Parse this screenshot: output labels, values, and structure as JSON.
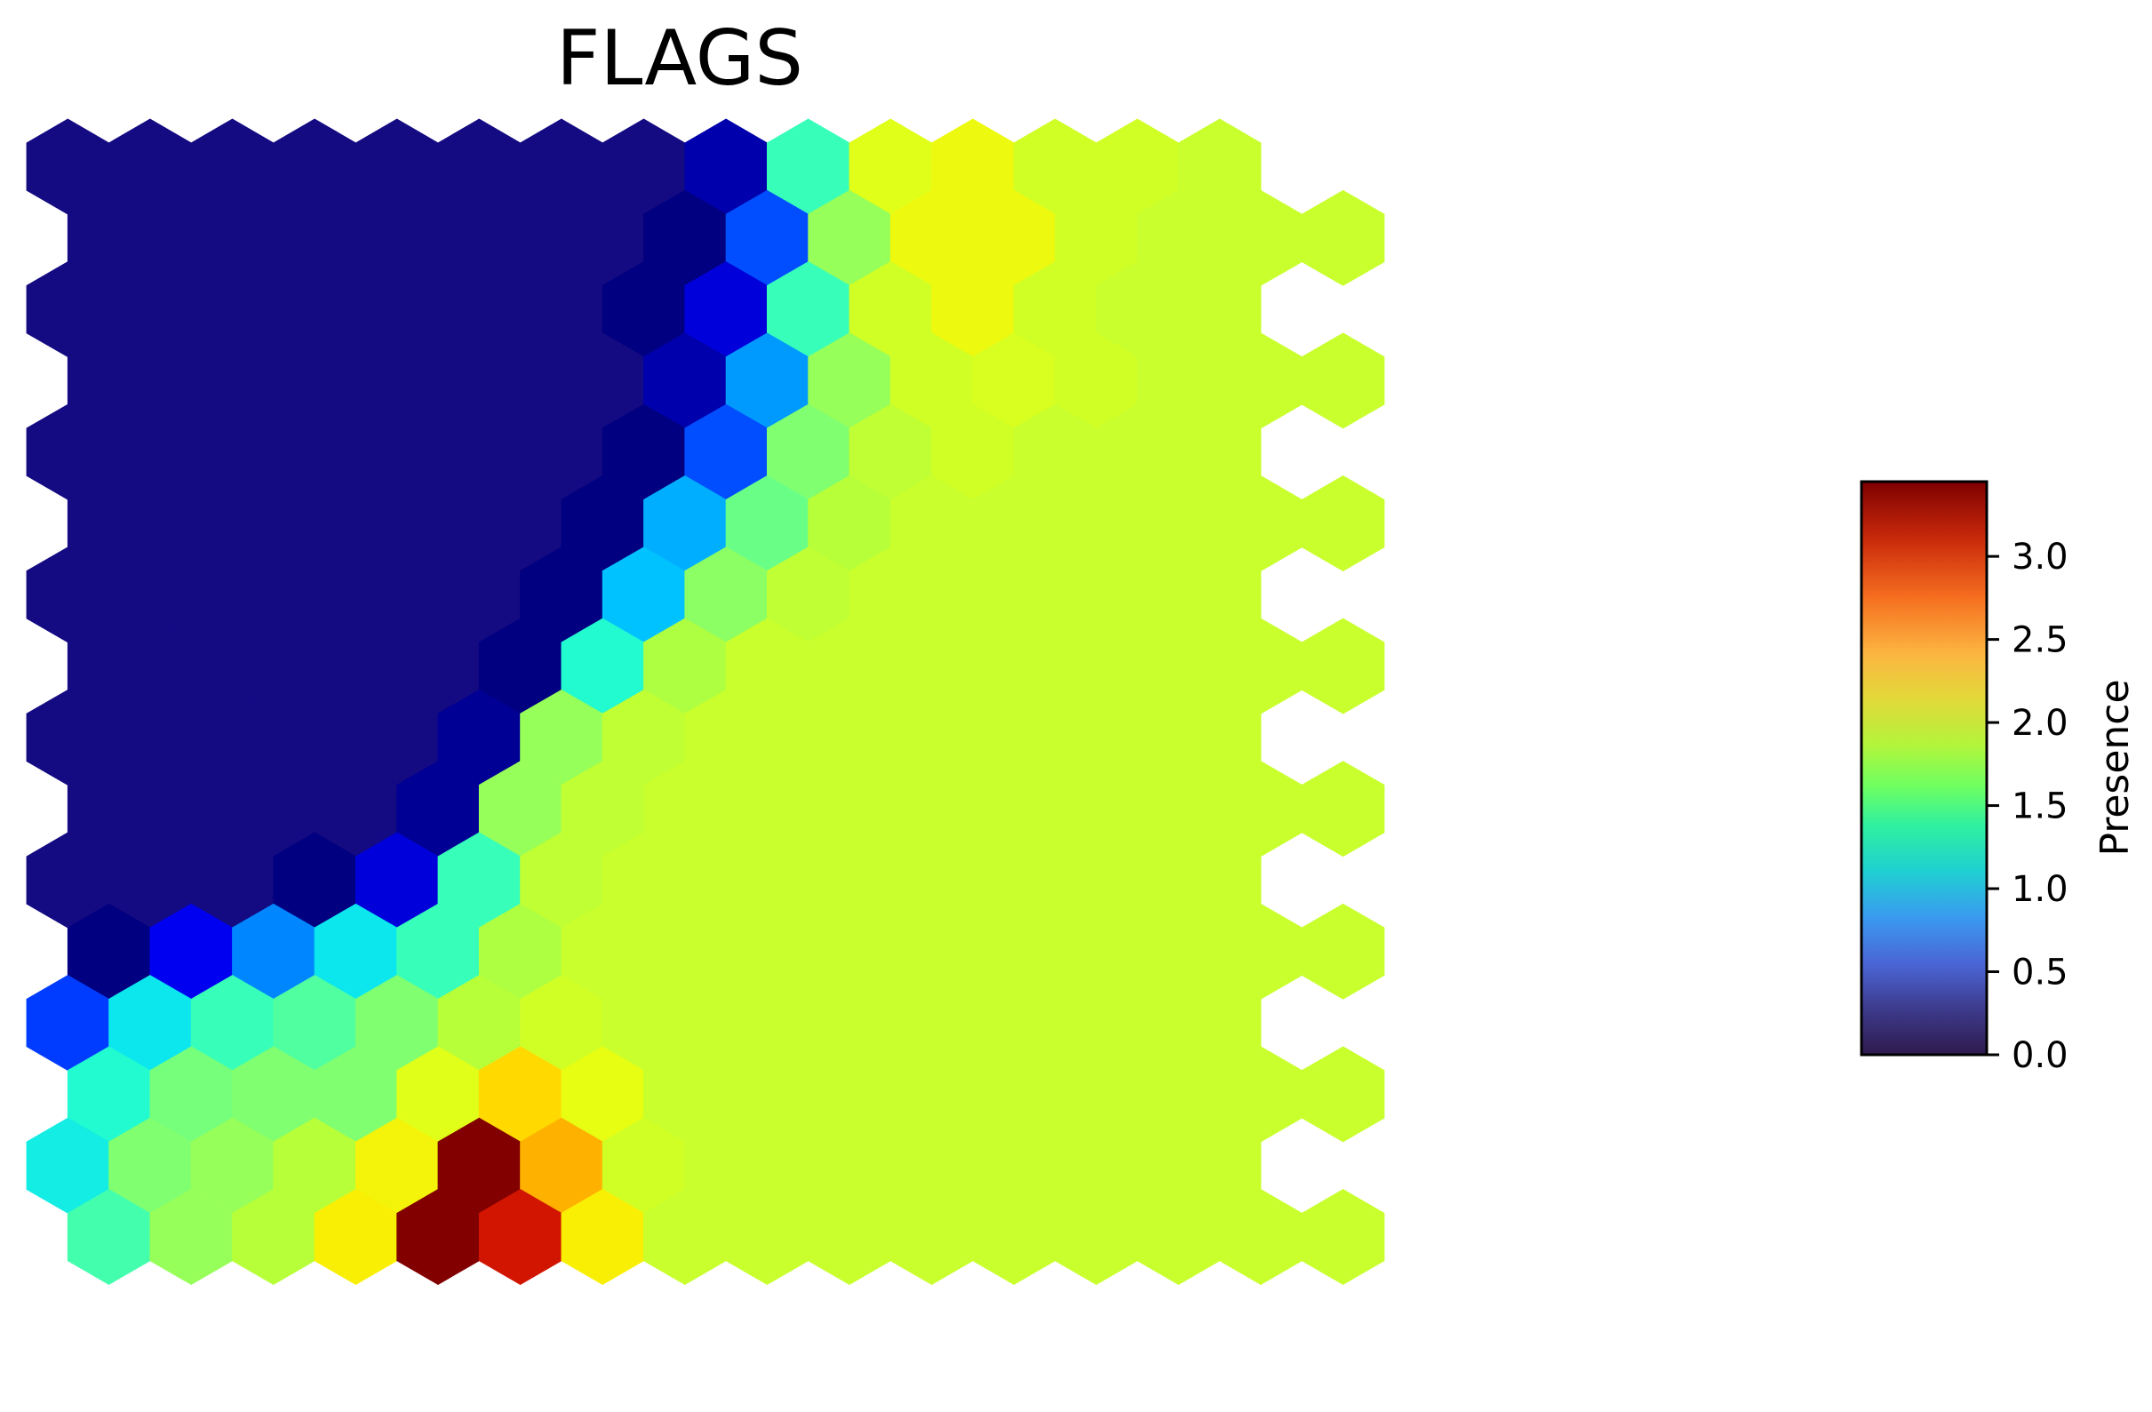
{
  "chart_data": {
    "type": "heatmap",
    "layout": "hexagonal",
    "title": "FLAGS",
    "rows": 16,
    "cols": 16,
    "row_order": "top-to-bottom",
    "odd_rows_offset": "right",
    "grid": false,
    "values": [
      [
        0.0,
        0.0,
        0.0,
        0.0,
        0.0,
        0.0,
        0.0,
        0.0,
        0.2,
        1.3,
        2.1,
        2.2,
        2.0,
        2.0,
        1.95,
        null
      ],
      [
        0.0,
        0.0,
        0.0,
        0.0,
        0.0,
        0.0,
        0.0,
        0.1,
        0.6,
        1.7,
        2.2,
        2.2,
        2.0,
        1.95,
        1.95,
        1.95
      ],
      [
        0.0,
        0.0,
        0.0,
        0.0,
        0.0,
        0.0,
        0.0,
        0.1,
        0.3,
        1.3,
        2.0,
        2.2,
        2.0,
        1.95,
        1.95,
        null
      ],
      [
        0.0,
        0.0,
        0.0,
        0.0,
        0.0,
        0.0,
        0.0,
        0.2,
        0.8,
        1.7,
        2.0,
        2.05,
        2.0,
        1.95,
        1.95,
        1.95
      ],
      [
        0.0,
        0.0,
        0.0,
        0.0,
        0.0,
        0.0,
        0.0,
        0.1,
        0.6,
        1.6,
        1.9,
        2.0,
        1.95,
        1.95,
        1.95,
        null
      ],
      [
        0.0,
        0.0,
        0.0,
        0.0,
        0.0,
        0.0,
        0.1,
        0.85,
        1.5,
        1.85,
        1.95,
        1.95,
        1.95,
        1.95,
        1.95,
        1.95
      ],
      [
        0.0,
        0.0,
        0.0,
        0.0,
        0.0,
        0.0,
        0.1,
        0.9,
        1.65,
        1.9,
        1.95,
        1.95,
        1.95,
        1.95,
        1.95,
        null
      ],
      [
        0.0,
        0.0,
        0.0,
        0.0,
        0.0,
        0.1,
        1.2,
        1.8,
        1.95,
        1.95,
        1.95,
        1.95,
        1.95,
        1.95,
        1.95,
        1.95
      ],
      [
        0.0,
        0.0,
        0.0,
        0.0,
        0.0,
        0.15,
        1.7,
        1.9,
        1.95,
        1.95,
        1.95,
        1.95,
        1.95,
        1.95,
        1.95,
        null
      ],
      [
        0.0,
        0.0,
        0.0,
        0.0,
        0.15,
        1.7,
        1.9,
        1.95,
        1.95,
        1.95,
        1.95,
        1.95,
        1.95,
        1.95,
        1.95,
        1.95
      ],
      [
        0.0,
        0.0,
        0.0,
        0.1,
        0.3,
        1.3,
        1.9,
        1.95,
        1.95,
        1.95,
        1.95,
        1.95,
        1.95,
        1.95,
        1.95,
        null
      ],
      [
        0.1,
        0.35,
        0.75,
        1.05,
        1.3,
        1.8,
        1.95,
        1.95,
        1.95,
        1.95,
        1.95,
        1.95,
        1.95,
        1.95,
        1.95,
        1.95
      ],
      [
        0.55,
        1.05,
        1.3,
        1.4,
        1.6,
        1.85,
        2.0,
        1.95,
        1.95,
        1.95,
        1.95,
        1.95,
        1.95,
        1.95,
        1.95,
        null
      ],
      [
        1.2,
        1.55,
        1.6,
        1.6,
        2.1,
        2.45,
        2.15,
        1.95,
        1.95,
        1.95,
        1.95,
        1.95,
        1.95,
        1.95,
        1.95,
        1.95
      ],
      [
        1.1,
        1.6,
        1.7,
        1.85,
        2.25,
        3.45,
        2.65,
        2.0,
        1.95,
        1.95,
        1.95,
        1.95,
        1.95,
        1.95,
        1.95,
        null
      ],
      [
        1.35,
        1.7,
        1.85,
        2.3,
        3.45,
        3.15,
        2.3,
        1.95,
        1.95,
        1.95,
        1.95,
        1.95,
        1.95,
        1.95,
        1.95,
        1.95
      ]
    ],
    "colorbar": {
      "label": "Presence",
      "range": [
        0.0,
        3.45
      ],
      "ticks": [
        0.0,
        0.5,
        1.0,
        1.5,
        2.0,
        2.5,
        3.0
      ],
      "tick_labels": [
        "0.0",
        "0.5",
        "1.0",
        "1.5",
        "2.0",
        "2.5",
        "3.0"
      ],
      "colormap": "jet-like (dark navy → blue → cyan → green → yellow → orange → red → dark red)",
      "top_color": "#7f0000",
      "bottom_color": "#2e1a4d"
    }
  }
}
